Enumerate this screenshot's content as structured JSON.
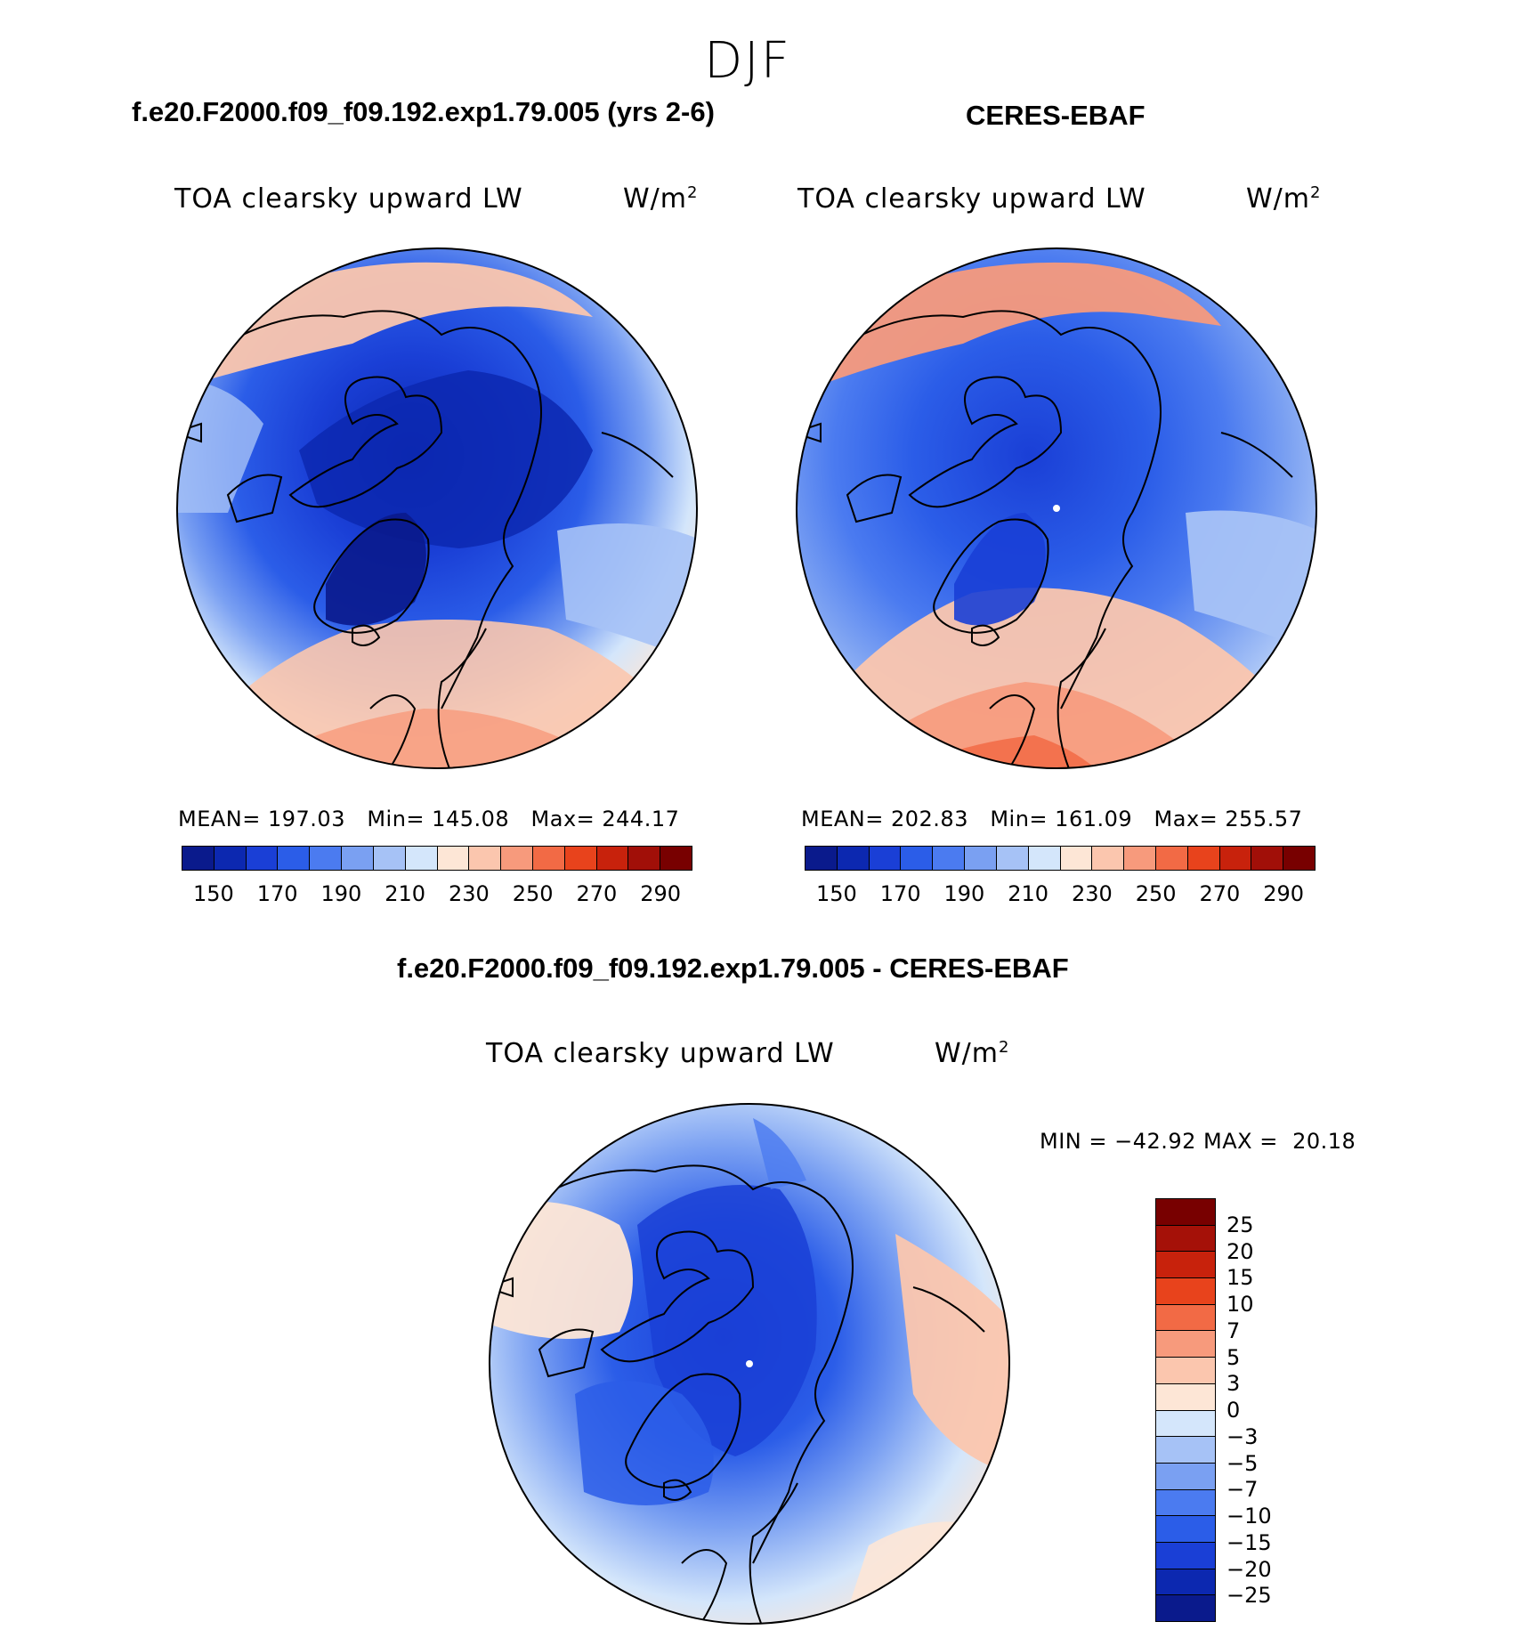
{
  "season": "DJF",
  "panels": {
    "model": {
      "title": "f.e20.F2000.f09_f09.192.exp1.79.005 (yrs 2-6)",
      "variable": "TOA clearsky upward LW",
      "units_base": "W/m",
      "units_exp": "2",
      "stats": "MEAN= 197.03   Min= 145.08   Max= 244.17"
    },
    "obs": {
      "title": "CERES-EBAF",
      "variable": "TOA clearsky upward LW",
      "units_base": "W/m",
      "units_exp": "2",
      "stats": "MEAN= 202.83   Min= 161.09   Max= 255.57"
    },
    "diff": {
      "title": "f.e20.F2000.f09_f09.192.exp1.79.005 - CERES-EBAF",
      "variable": "TOA clearsky upward LW",
      "units_base": "W/m",
      "units_exp": "2",
      "stats": "MIN = −42.92 MAX =  20.18"
    }
  },
  "colorbar_main": {
    "colors": [
      "#0a1a8c",
      "#0c28b0",
      "#1a3fd6",
      "#2b5de8",
      "#4b7bf0",
      "#7aa0f2",
      "#a6c2f6",
      "#d4e6fb",
      "#fde6d6",
      "#fbc6ae",
      "#f79a7c",
      "#f26a45",
      "#e8431c",
      "#c8220c",
      "#a10f08",
      "#780000"
    ],
    "ticks": [
      "150",
      "170",
      "190",
      "210",
      "230",
      "250",
      "270",
      "290"
    ]
  },
  "colorbar_diff": {
    "colors": [
      "#780000",
      "#a51108",
      "#c8220c",
      "#e8431c",
      "#f26a45",
      "#f79a7c",
      "#fbc6ae",
      "#fde6d6",
      "#d4e6fb",
      "#a6c2f6",
      "#7aa0f2",
      "#4b7bf0",
      "#2b5de8",
      "#1a3fd6",
      "#0c28b0",
      "#0a1a8c"
    ],
    "ticks": [
      "25",
      "20",
      "15",
      "10",
      "7",
      "5",
      "3",
      "0",
      "−3",
      "−5",
      "−7",
      "−10",
      "−15",
      "−20",
      "−25"
    ]
  }
}
